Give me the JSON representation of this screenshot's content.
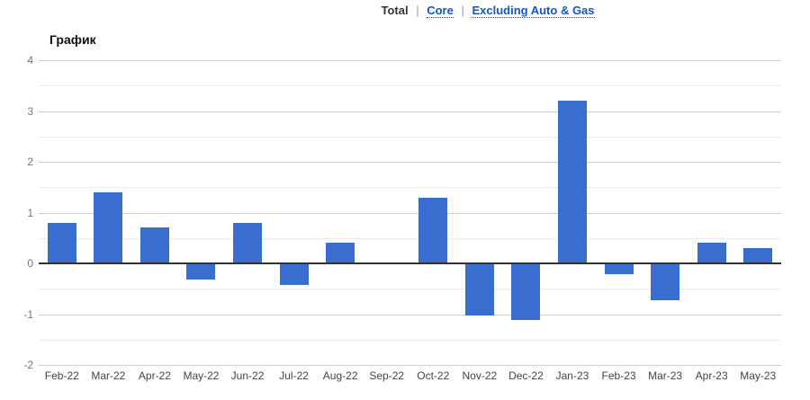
{
  "tabs": {
    "separator": "|",
    "items": [
      {
        "label": "Total",
        "active": true
      },
      {
        "label": "Core",
        "active": false
      },
      {
        "label": "Excluding Auto & Gas",
        "active": false
      }
    ]
  },
  "title": "График",
  "chart_data": {
    "type": "bar",
    "title": "График",
    "categories": [
      "Feb-22",
      "Mar-22",
      "Apr-22",
      "May-22",
      "Jun-22",
      "Jul-22",
      "Aug-22",
      "Sep-22",
      "Oct-22",
      "Nov-22",
      "Dec-22",
      "Jan-23",
      "Feb-23",
      "Mar-23",
      "Apr-23",
      "May-23"
    ],
    "values": [
      0.8,
      1.4,
      0.7,
      -0.3,
      0.8,
      -0.4,
      0.4,
      0,
      1.3,
      -1.0,
      -1.1,
      3.2,
      -0.2,
      -0.7,
      0.4,
      0.3
    ],
    "xlabel": "",
    "ylabel": "",
    "ylim": [
      -2,
      4
    ],
    "y_ticks": [
      4,
      3,
      2,
      1,
      0,
      -1,
      -2
    ],
    "minor_grid_step": 0.5,
    "grid": "on",
    "legend": "none",
    "bar_color": "#3a6dd0"
  },
  "colors": {
    "bar": "#3a6dd0",
    "link": "#1155cc",
    "tab_text": "#333333",
    "separator": "#999999",
    "axis_line": "#333333",
    "grid_major": "#cccccc",
    "grid_minor": "#ededed",
    "y_label": "#757575",
    "x_label": "#444444",
    "background": "#ffffff"
  }
}
